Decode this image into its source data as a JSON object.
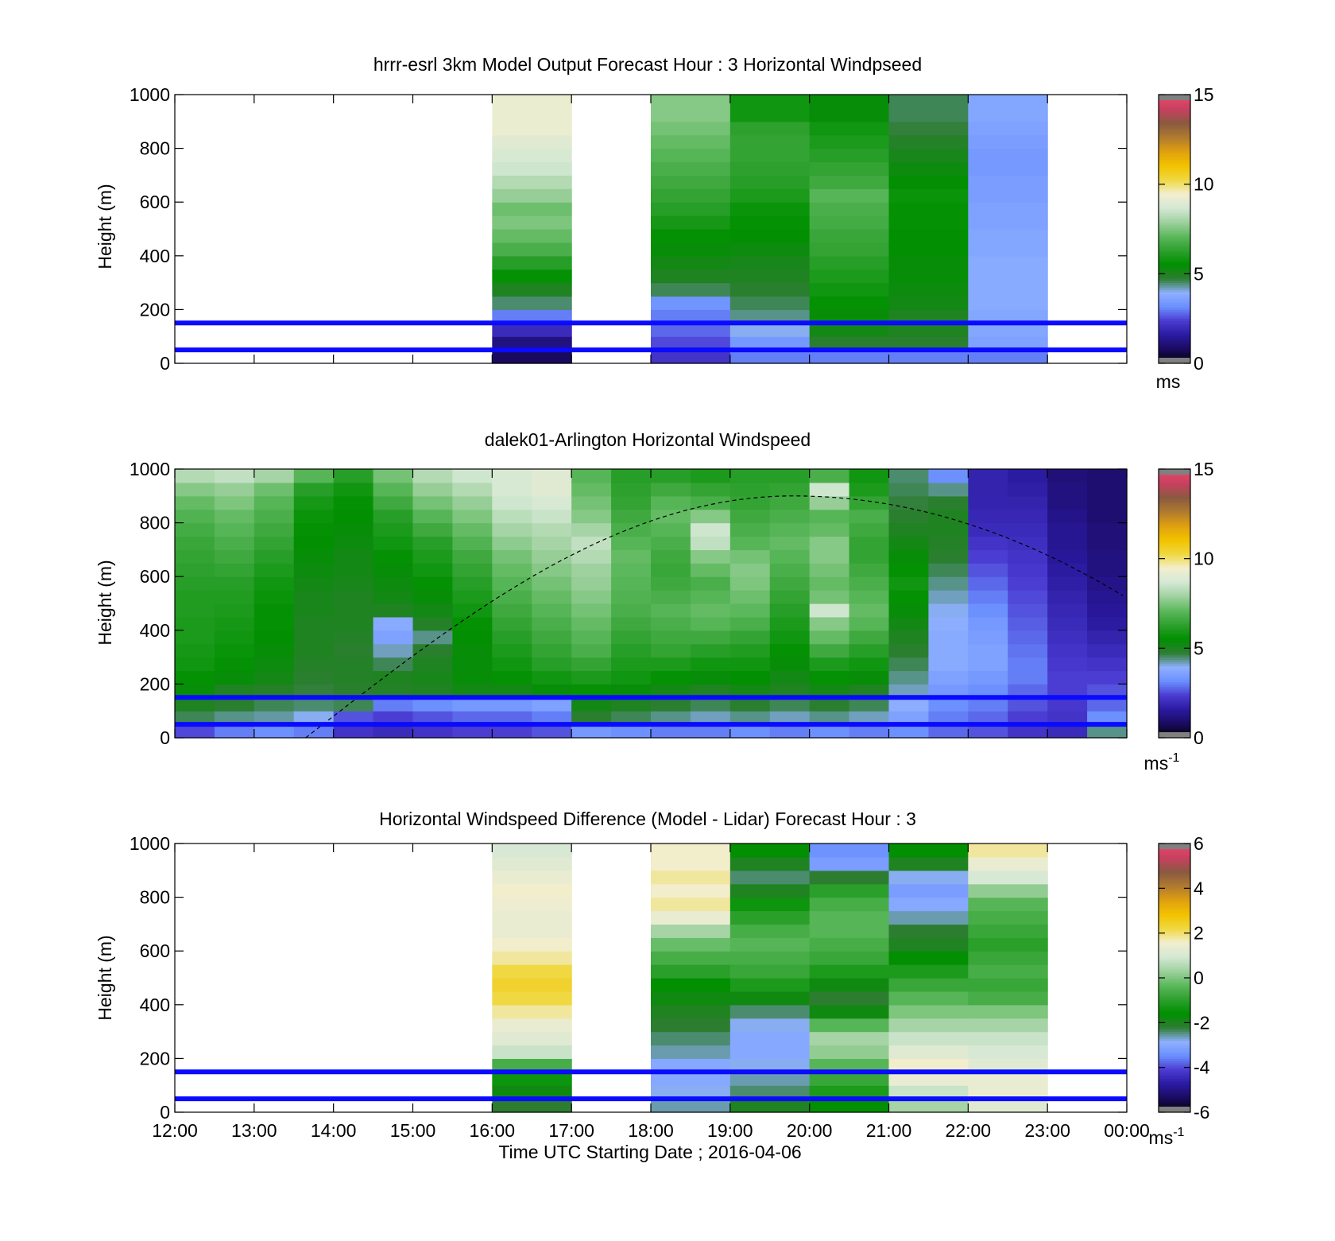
{
  "figure": {
    "xlabel": "Time UTC  Starting Date ; 2016-04-06"
  },
  "colorbar_colors": [
    "#000000",
    "#1a0a5e",
    "#2a1aa0",
    "#4a3ad0",
    "#6a8fff",
    "#8fb0ff",
    "#2e7d32",
    "#009000",
    "#2ea02e",
    "#5cb85c",
    "#9fd19f",
    "#d4e8d4",
    "#f2eed0",
    "#f0d840",
    "#f2c200",
    "#e0a010",
    "#b07a30",
    "#8a5a40",
    "#c84060",
    "#e84a6a"
  ],
  "chart_data": [
    {
      "type": "heatmap",
      "title": "hrrr-esrl 3km Model Output   Forecast Hour : 3 Horizontal Windpseed",
      "ylabel": "Height (m)",
      "xlim": [
        "12:00",
        "00:00"
      ],
      "ylim": [
        0,
        1000
      ],
      "yticks": [
        0,
        200,
        400,
        600,
        800,
        1000
      ],
      "colorbar": {
        "min": 0,
        "max": 15,
        "ticks": [
          0,
          5,
          10,
          15
        ],
        "unit": "ms"
      },
      "reference_lines_m": [
        50,
        150
      ],
      "heights": [
        25,
        75,
        125,
        175,
        225,
        275,
        325,
        375,
        425,
        475,
        525,
        575,
        625,
        675,
        725,
        775,
        825,
        875,
        925,
        975
      ],
      "columns": [
        {
          "start": "16:00",
          "end": "17:00",
          "values": [
            0.8,
            1.2,
            2.0,
            3.0,
            4.5,
            5.0,
            5.6,
            6.2,
            6.8,
            7.2,
            7.5,
            7.3,
            7.8,
            8.2,
            8.6,
            8.8,
            9.0,
            9.3,
            9.3,
            9.3
          ]
        },
        {
          "start": "18:00",
          "end": "19:00",
          "values": [
            2.2,
            2.5,
            2.8,
            3.0,
            3.3,
            4.6,
            5.0,
            5.2,
            5.4,
            5.6,
            5.9,
            6.2,
            6.4,
            6.6,
            6.8,
            7.0,
            7.2,
            7.4,
            7.6,
            7.6
          ]
        },
        {
          "start": "19:00",
          "end": "20:00",
          "values": [
            3.0,
            3.4,
            4.0,
            4.4,
            4.6,
            4.8,
            5.0,
            5.1,
            5.3,
            5.5,
            5.6,
            5.7,
            6.0,
            6.2,
            6.3,
            6.4,
            6.4,
            6.3,
            5.8,
            5.8
          ]
        },
        {
          "start": "20:00",
          "end": "21:00",
          "values": [
            3.0,
            4.8,
            5.2,
            5.4,
            5.6,
            5.8,
            6.0,
            6.2,
            6.4,
            6.5,
            6.7,
            6.8,
            7.0,
            6.6,
            6.4,
            6.2,
            6.0,
            5.8,
            5.4,
            5.4
          ]
        },
        {
          "start": "21:00",
          "end": "22:00",
          "values": [
            3.0,
            4.8,
            5.0,
            5.0,
            5.2,
            5.3,
            5.4,
            5.4,
            5.5,
            5.5,
            5.6,
            5.6,
            5.7,
            5.5,
            5.3,
            5.1,
            4.9,
            4.7,
            4.6,
            4.6
          ]
        },
        {
          "start": "22:00",
          "end": "23:00",
          "values": [
            3.0,
            3.6,
            3.7,
            3.7,
            3.8,
            3.8,
            3.8,
            3.8,
            3.7,
            3.7,
            3.6,
            3.6,
            3.5,
            3.5,
            3.4,
            3.4,
            3.5,
            3.6,
            3.7,
            3.7
          ]
        }
      ]
    },
    {
      "type": "heatmap",
      "title": "dalek01-Arlington  Horizontal Windspeed",
      "ylabel": "Height (m)",
      "xlim": [
        "12:00",
        "00:00"
      ],
      "ylim": [
        0,
        1000
      ],
      "yticks": [
        0,
        200,
        400,
        600,
        800,
        1000
      ],
      "colorbar": {
        "min": 0,
        "max": 15,
        "ticks": [
          0,
          5,
          10,
          15
        ],
        "unit": "ms-1"
      },
      "reference_lines_m": [
        50,
        150
      ],
      "heights": [
        25,
        75,
        125,
        175,
        225,
        275,
        325,
        375,
        425,
        475,
        525,
        575,
        625,
        675,
        725,
        775,
        825,
        875,
        925,
        975
      ],
      "columns": [
        {
          "start": "12:00",
          "end": "12:30",
          "values": [
            2.5,
            4.6,
            5.0,
            5.4,
            5.6,
            5.8,
            5.9,
            6.0,
            6.0,
            6.1,
            6.1,
            6.2,
            6.3,
            6.4,
            6.5,
            6.7,
            6.9,
            7.2,
            7.6,
            8.2
          ]
        },
        {
          "start": "12:30",
          "end": "13:00",
          "values": [
            3.0,
            4.4,
            4.8,
            5.0,
            5.4,
            5.6,
            5.7,
            5.8,
            5.9,
            6.0,
            6.1,
            6.2,
            6.4,
            6.6,
            6.8,
            7.0,
            7.2,
            7.5,
            7.8,
            8.4
          ]
        },
        {
          "start": "13:00",
          "end": "13:30",
          "values": [
            3.2,
            4.3,
            4.6,
            4.9,
            5.2,
            5.3,
            5.4,
            5.5,
            5.6,
            5.6,
            5.7,
            5.8,
            6.0,
            6.2,
            6.4,
            6.6,
            6.8,
            7.0,
            7.3,
            8.0
          ]
        },
        {
          "start": "13:30",
          "end": "14:00",
          "values": [
            3.0,
            4.0,
            4.5,
            4.7,
            4.8,
            4.9,
            5.0,
            5.0,
            5.0,
            5.1,
            5.1,
            5.2,
            5.3,
            5.4,
            5.5,
            5.6,
            5.7,
            5.9,
            6.2,
            7.0
          ]
        },
        {
          "start": "14:00",
          "end": "14:30",
          "values": [
            2.2,
            2.6,
            4.6,
            4.8,
            4.9,
            4.9,
            4.8,
            4.9,
            5.0,
            5.0,
            5.0,
            5.1,
            5.2,
            5.2,
            5.3,
            5.4,
            5.5,
            5.6,
            5.8,
            6.2
          ]
        },
        {
          "start": "14:30",
          "end": "15:00",
          "values": [
            2.0,
            2.4,
            3.0,
            4.9,
            5.0,
            4.6,
            4.2,
            3.6,
            3.8,
            5.0,
            5.2,
            5.3,
            5.4,
            5.6,
            5.8,
            6.0,
            6.2,
            6.6,
            7.0,
            7.4
          ]
        },
        {
          "start": "15:00",
          "end": "15:30",
          "values": [
            2.2,
            2.6,
            3.2,
            5.0,
            5.1,
            5.0,
            4.8,
            4.4,
            4.9,
            5.2,
            5.4,
            5.6,
            5.8,
            6.0,
            6.2,
            6.6,
            7.0,
            7.4,
            7.8,
            8.2
          ]
        },
        {
          "start": "15:30",
          "end": "16:00",
          "values": [
            2.4,
            2.8,
            3.4,
            5.2,
            5.4,
            5.4,
            5.4,
            5.5,
            5.6,
            5.8,
            6.0,
            6.2,
            6.4,
            6.6,
            6.9,
            7.2,
            7.5,
            7.8,
            8.2,
            8.6
          ]
        },
        {
          "start": "16:00",
          "end": "16:30",
          "values": [
            2.4,
            2.8,
            3.4,
            5.2,
            5.6,
            5.8,
            6.0,
            6.2,
            6.4,
            6.6,
            6.8,
            7.0,
            7.2,
            7.4,
            7.7,
            8.0,
            8.3,
            8.6,
            8.8,
            8.8
          ]
        },
        {
          "start": "16:30",
          "end": "17:00",
          "values": [
            2.6,
            3.0,
            3.6,
            5.4,
            5.8,
            6.2,
            6.4,
            6.6,
            6.8,
            7.0,
            7.2,
            7.4,
            7.6,
            7.8,
            8.0,
            8.2,
            8.5,
            8.8,
            9.0,
            9.0
          ]
        },
        {
          "start": "17:00",
          "end": "17:30",
          "values": [
            3.4,
            4.8,
            5.2,
            5.6,
            6.0,
            6.4,
            6.8,
            7.0,
            7.2,
            7.4,
            7.6,
            7.8,
            7.9,
            8.2,
            8.4,
            8.0,
            7.6,
            7.4,
            7.2,
            7.0
          ]
        },
        {
          "start": "17:30",
          "end": "18:00",
          "values": [
            3.2,
            4.6,
            5.0,
            5.4,
            5.8,
            6.0,
            6.2,
            6.4,
            6.6,
            6.8,
            6.9,
            7.0,
            7.1,
            7.2,
            7.0,
            6.8,
            6.6,
            6.4,
            6.3,
            6.2
          ]
        },
        {
          "start": "18:00",
          "end": "18:30",
          "values": [
            3.0,
            4.4,
            4.8,
            5.2,
            5.6,
            6.0,
            6.4,
            6.6,
            6.8,
            7.0,
            6.8,
            6.6,
            6.5,
            6.6,
            6.8,
            7.0,
            7.2,
            7.0,
            6.6,
            6.2
          ]
        },
        {
          "start": "18:30",
          "end": "19:00",
          "values": [
            3.0,
            4.2,
            4.6,
            5.0,
            5.4,
            5.8,
            6.2,
            6.6,
            7.0,
            7.2,
            7.0,
            6.8,
            7.2,
            7.6,
            8.4,
            8.6,
            7.6,
            6.8,
            6.4,
            6.0
          ]
        },
        {
          "start": "19:00",
          "end": "19:30",
          "values": [
            3.2,
            4.4,
            4.8,
            5.2,
            5.5,
            5.8,
            6.1,
            6.4,
            6.8,
            7.1,
            7.3,
            7.5,
            7.6,
            7.4,
            7.0,
            6.8,
            6.6,
            6.4,
            6.3,
            6.2
          ]
        },
        {
          "start": "19:30",
          "end": "20:00",
          "values": [
            3.0,
            4.2,
            4.6,
            5.0,
            5.2,
            5.4,
            5.6,
            5.8,
            6.0,
            6.2,
            6.4,
            6.6,
            6.8,
            7.0,
            7.2,
            7.0,
            6.8,
            6.6,
            6.4,
            6.2
          ]
        },
        {
          "start": "20:00",
          "end": "20:30",
          "values": [
            3.2,
            4.4,
            4.8,
            5.2,
            5.6,
            6.0,
            6.6,
            7.2,
            7.6,
            8.6,
            7.4,
            7.2,
            7.4,
            7.6,
            7.6,
            7.2,
            7.0,
            7.8,
            8.6,
            6.8
          ]
        },
        {
          "start": "20:30",
          "end": "21:00",
          "values": [
            3.0,
            4.2,
            4.6,
            5.0,
            5.4,
            5.8,
            6.2,
            6.6,
            7.0,
            7.2,
            7.0,
            6.8,
            6.6,
            6.4,
            6.4,
            6.6,
            6.8,
            6.4,
            6.0,
            5.8
          ]
        },
        {
          "start": "21:00",
          "end": "21:30",
          "values": [
            3.2,
            3.6,
            3.9,
            4.2,
            4.4,
            4.6,
            4.8,
            5.0,
            5.2,
            5.4,
            5.6,
            5.8,
            5.6,
            5.4,
            5.2,
            5.0,
            4.8,
            4.7,
            4.6,
            4.5
          ]
        },
        {
          "start": "21:30",
          "end": "22:00",
          "values": [
            2.8,
            3.0,
            3.2,
            3.4,
            3.6,
            3.8,
            3.8,
            3.8,
            3.9,
            4.0,
            4.2,
            4.4,
            4.6,
            4.8,
            4.9,
            5.0,
            5.0,
            4.8,
            4.4,
            3.2
          ]
        },
        {
          "start": "22:00",
          "end": "22:30",
          "values": [
            2.6,
            2.8,
            3.0,
            3.2,
            3.4,
            3.6,
            3.6,
            3.5,
            3.4,
            3.2,
            3.0,
            2.8,
            2.6,
            2.4,
            2.2,
            2.0,
            1.9,
            1.8,
            1.8,
            1.8
          ]
        },
        {
          "start": "22:30",
          "end": "23:00",
          "values": [
            2.2,
            2.4,
            2.6,
            2.8,
            3.0,
            3.0,
            2.9,
            2.8,
            2.7,
            2.6,
            2.5,
            2.4,
            2.3,
            2.2,
            2.1,
            2.0,
            1.9,
            1.8,
            1.7,
            1.6
          ]
        },
        {
          "start": "23:00",
          "end": "23:30",
          "values": [
            2.0,
            2.2,
            2.3,
            2.4,
            2.4,
            2.3,
            2.2,
            2.1,
            2.0,
            1.9,
            1.8,
            1.7,
            1.6,
            1.5,
            1.4,
            1.4,
            1.3,
            1.2,
            1.2,
            1.1
          ]
        },
        {
          "start": "23:30",
          "end": "00:00",
          "values": [
            4.4,
            3.2,
            2.8,
            2.6,
            2.4,
            2.2,
            2.0,
            1.8,
            1.6,
            1.5,
            1.4,
            1.3,
            1.2,
            1.2,
            1.1,
            1.1,
            1.0,
            1.0,
            1.0,
            1.0
          ]
        }
      ]
    },
    {
      "type": "heatmap",
      "title": "Horizontal Windspeed Difference (Model - Lidar) Forecast Hour : 3",
      "ylabel": "Height (m)",
      "xlabel": "Time UTC  Starting Date ; 2016-04-06",
      "xticks": [
        "12:00",
        "13:00",
        "14:00",
        "15:00",
        "16:00",
        "17:00",
        "18:00",
        "19:00",
        "20:00",
        "21:00",
        "22:00",
        "23:00",
        "00:00"
      ],
      "xlim": [
        "12:00",
        "00:00"
      ],
      "ylim": [
        0,
        1000
      ],
      "yticks": [
        0,
        200,
        400,
        600,
        800,
        1000
      ],
      "colorbar": {
        "min": -6,
        "max": 6,
        "ticks": [
          -6,
          -4,
          -2,
          0,
          2,
          4,
          6
        ],
        "unit": "ms-1"
      },
      "reference_lines_m": [
        50,
        150
      ],
      "heights": [
        25,
        75,
        125,
        175,
        225,
        275,
        325,
        375,
        425,
        475,
        525,
        575,
        625,
        675,
        725,
        775,
        825,
        875,
        925,
        975
      ],
      "columns": [
        {
          "start": "16:00",
          "end": "17:00",
          "values": [
            -2.2,
            -1.8,
            -1.4,
            -0.6,
            0.8,
            1.2,
            1.4,
            1.8,
            2.2,
            2.4,
            2.2,
            1.8,
            1.6,
            1.4,
            1.4,
            1.5,
            1.6,
            1.4,
            1.2,
            1.0
          ]
        },
        {
          "start": "18:00",
          "end": "19:00",
          "values": [
            -2.6,
            -2.8,
            -3.0,
            -3.0,
            -2.6,
            -2.4,
            -2.2,
            -2.0,
            -1.8,
            -1.6,
            -1.0,
            -0.6,
            -0.2,
            0.4,
            1.4,
            1.8,
            1.6,
            1.8,
            1.6,
            1.6
          ]
        },
        {
          "start": "19:00",
          "end": "20:00",
          "values": [
            -2.0,
            -2.4,
            -2.6,
            -2.8,
            -3.0,
            -3.0,
            -2.8,
            -2.4,
            -1.8,
            -1.2,
            -0.8,
            -0.6,
            -0.4,
            -0.6,
            -1.0,
            -1.4,
            -2.0,
            -2.4,
            -2.0,
            -1.6
          ]
        },
        {
          "start": "20:00",
          "end": "21:00",
          "values": [
            -1.6,
            -1.2,
            -0.8,
            -0.4,
            0.2,
            0.4,
            -0.4,
            -1.8,
            -2.2,
            -1.8,
            -1.2,
            -0.8,
            -0.6,
            -0.4,
            -0.4,
            -0.6,
            -1.0,
            -2.2,
            -3.2,
            -3.4
          ]
        },
        {
          "start": "21:00",
          "end": "22:00",
          "values": [
            0.4,
            0.8,
            1.4,
            1.6,
            1.2,
            0.8,
            0.4,
            0.0,
            -0.4,
            -0.8,
            -1.2,
            -1.6,
            -2.0,
            -2.2,
            -2.6,
            -3.0,
            -3.2,
            -2.8,
            -2.0,
            -1.6
          ]
        },
        {
          "start": "22:00",
          "end": "23:00",
          "values": [
            1.2,
            1.4,
            1.4,
            1.2,
            1.0,
            0.8,
            0.4,
            0.0,
            -0.6,
            -0.8,
            -0.6,
            -0.8,
            -1.0,
            -0.8,
            -0.6,
            -0.4,
            0.2,
            1.0,
            1.4,
            1.8
          ]
        }
      ]
    }
  ]
}
